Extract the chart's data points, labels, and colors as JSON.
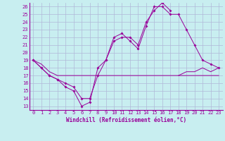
{
  "xlabel": "Windchill (Refroidissement éolien,°C)",
  "xlim": [
    -0.5,
    23.5
  ],
  "ylim": [
    12.5,
    26.5
  ],
  "yticks": [
    13,
    14,
    15,
    16,
    17,
    18,
    19,
    20,
    21,
    22,
    23,
    24,
    25,
    26
  ],
  "xticks": [
    0,
    1,
    2,
    3,
    4,
    5,
    6,
    7,
    8,
    9,
    10,
    11,
    12,
    13,
    14,
    15,
    16,
    17,
    18,
    19,
    20,
    21,
    22,
    23
  ],
  "bg_color": "#c8eef0",
  "grid_color": "#b0b8d8",
  "line_color": "#990099",
  "line1_x": [
    0,
    1,
    2,
    3,
    4,
    5,
    6,
    7,
    8,
    9,
    10,
    11,
    12,
    13,
    14,
    15,
    16,
    17,
    18,
    19,
    20,
    21,
    22,
    23
  ],
  "line1_y": [
    19,
    18.5,
    17.5,
    17,
    17,
    17,
    17,
    17,
    17,
    17,
    17,
    17,
    17,
    17,
    17,
    17,
    17,
    17,
    17,
    17,
    17,
    17,
    17,
    17
  ],
  "line2_x": [
    0,
    1,
    2,
    3,
    4,
    5,
    6,
    7,
    8,
    9,
    10,
    11,
    12,
    13,
    14,
    15,
    16,
    17,
    18,
    19,
    20,
    21,
    22,
    23
  ],
  "line2_y": [
    19,
    18,
    17,
    16.5,
    15.5,
    15,
    13,
    13.5,
    18,
    19,
    22,
    22.5,
    21.5,
    20.5,
    23.5,
    26,
    26,
    25,
    25,
    23,
    21,
    19,
    18.5,
    18
  ],
  "line3_x": [
    0,
    1,
    2,
    3,
    4,
    5,
    6,
    7,
    8,
    9,
    10,
    11,
    12,
    13,
    14,
    15,
    16,
    17,
    18,
    19,
    20,
    21,
    22,
    23
  ],
  "line3_y": [
    19,
    18,
    17,
    16.5,
    16,
    15.5,
    14,
    14,
    17,
    19,
    21.5,
    22,
    22,
    21,
    24,
    25.5,
    26.5,
    25.5,
    null,
    null,
    null,
    null,
    null,
    null
  ],
  "line4_x": [
    0,
    1,
    2,
    3,
    4,
    5,
    6,
    7,
    8,
    9,
    10,
    11,
    12,
    13,
    14,
    15,
    16,
    17,
    18,
    19,
    20,
    21,
    22,
    23
  ],
  "line4_y": [
    null,
    null,
    null,
    null,
    null,
    null,
    null,
    null,
    null,
    null,
    null,
    null,
    null,
    null,
    null,
    null,
    null,
    null,
    17,
    17.5,
    17.5,
    18,
    17.5,
    18
  ]
}
